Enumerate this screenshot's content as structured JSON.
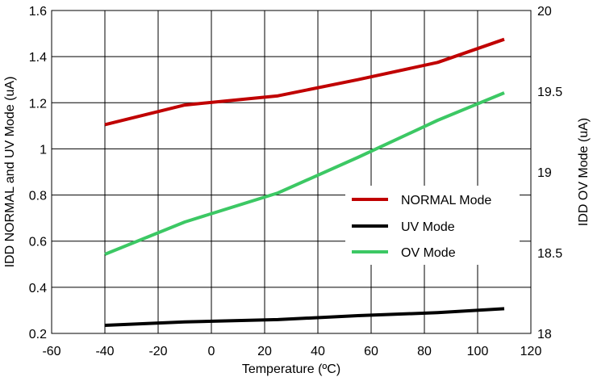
{
  "chart_data": {
    "type": "line",
    "title": "",
    "xlabel": "Temperature (ºC)",
    "ylabel_left": "IDD NORMAL and UV Mode (uA)",
    "ylabel_right": "IDD OV Mode (uA)",
    "xlim": [
      -60,
      120
    ],
    "ylim_left": [
      0.2,
      1.6
    ],
    "ylim_right": [
      18,
      20
    ],
    "x_ticks": [
      -60,
      -40,
      -20,
      0,
      20,
      40,
      60,
      80,
      100,
      120
    ],
    "x_tick_labels": [
      "-60",
      "-40",
      "-20",
      "0",
      "20",
      "40",
      "60",
      "80",
      "100",
      "120"
    ],
    "y_left_ticks": [
      0.2,
      0.4,
      0.6,
      0.8,
      1.0,
      1.2,
      1.4,
      1.6
    ],
    "y_left_tick_labels": [
      "0.2",
      "0.4",
      "0.6",
      "0.8",
      "1",
      "1.2",
      "1.4",
      "1.6"
    ],
    "y_right_ticks": [
      18,
      18.5,
      19,
      19.5,
      20
    ],
    "y_right_tick_labels": [
      "18",
      "18.5",
      "19",
      "19.5",
      "20"
    ],
    "grid": true,
    "legend_position": "right-middle",
    "series": [
      {
        "name": "NORMAL Mode",
        "axis": "left",
        "color": "#c00000",
        "x": [
          -40,
          -10,
          25,
          55,
          85,
          110
        ],
        "y": [
          1.105,
          1.19,
          1.23,
          1.3,
          1.375,
          1.475
        ]
      },
      {
        "name": "UV Mode",
        "axis": "left",
        "color": "#000000",
        "x": [
          -40,
          -10,
          25,
          55,
          85,
          110
        ],
        "y": [
          0.235,
          0.25,
          0.26,
          0.277,
          0.29,
          0.307
        ]
      },
      {
        "name": "OV Mode",
        "axis": "right",
        "color": "#3cc864",
        "x": [
          -40,
          -10,
          25,
          55,
          85,
          110
        ],
        "y": [
          18.49,
          18.69,
          18.87,
          19.09,
          19.32,
          19.49
        ]
      }
    ]
  }
}
